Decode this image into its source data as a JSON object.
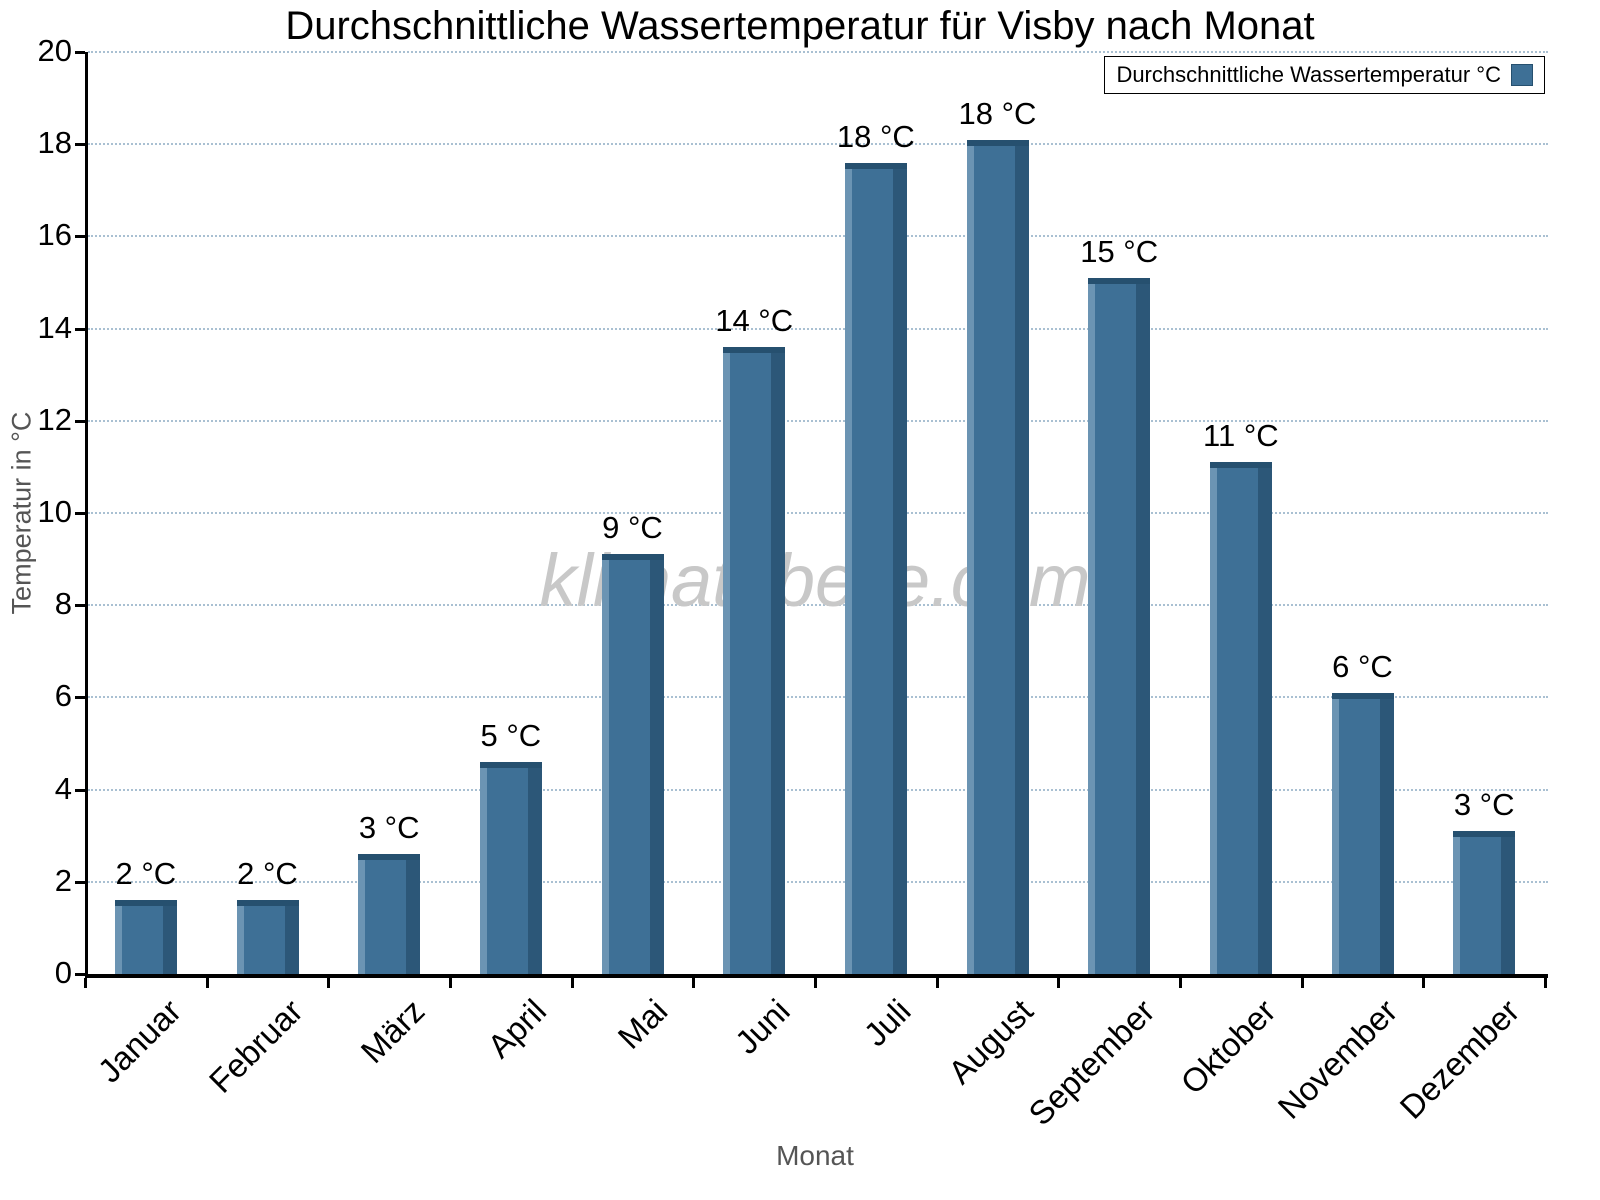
{
  "watermark": "klimatabelle.com",
  "chart_data": {
    "type": "bar",
    "title": "Durchschnittliche Wassertemperatur für Visby nach Monat",
    "xlabel": "Monat",
    "ylabel": "Temperatur in °C",
    "legend_label": "Durchschnittliche Wassertemperatur °C",
    "categories": [
      "Januar",
      "Februar",
      "März",
      "April",
      "Mai",
      "Juni",
      "Juli",
      "August",
      "September",
      "Oktober",
      "November",
      "Dezember"
    ],
    "values": [
      1.6,
      1.6,
      2.6,
      4.6,
      9.1,
      13.6,
      17.6,
      18.1,
      15.1,
      11.1,
      6.1,
      3.1
    ],
    "bar_labels": [
      "2 °C",
      "2 °C",
      "3 °C",
      "5 °C",
      "9 °C",
      "14 °C",
      "18 °C",
      "18 °C",
      "15 °C",
      "11 °C",
      "6 °C",
      "3 °C"
    ],
    "ylim": [
      0,
      20
    ],
    "ytick_step": 2,
    "grid": true,
    "legend_position": "top-right",
    "bar_color": "#3e7096",
    "bar_color_light": "#6b94b3",
    "bar_color_dark": "#2c5778",
    "bar_cap_color": "#26506f"
  }
}
